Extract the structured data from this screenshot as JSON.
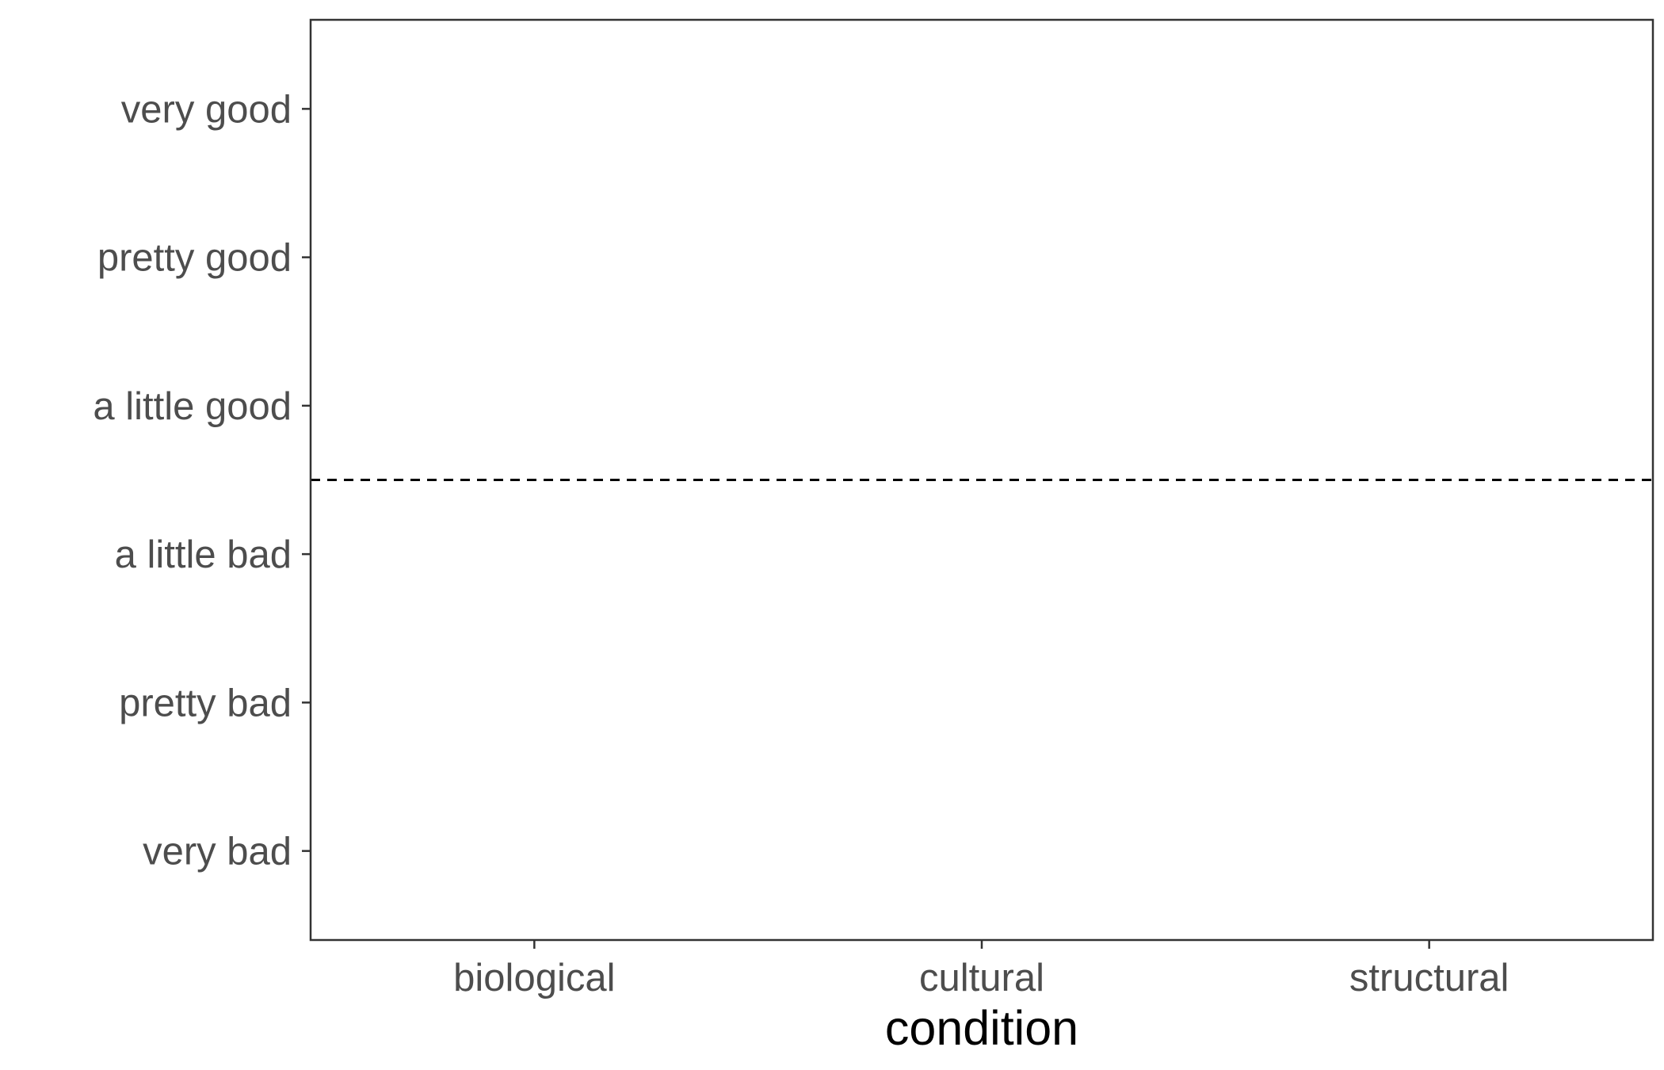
{
  "chart_data": {
    "type": "bar",
    "title": "",
    "xlabel": "condition",
    "ylabel": "",
    "categories": [
      "biological",
      "cultural",
      "structural"
    ],
    "y_categories": [
      "very bad",
      "pretty bad",
      "a little bad",
      "a little good",
      "pretty good",
      "very good"
    ],
    "series": [],
    "reference_line": {
      "orientation": "horizontal",
      "position": "between a little bad and a little good",
      "style": "dashed"
    },
    "grid": false,
    "legend": "none"
  },
  "colors": {
    "panel_border": "#333333",
    "tick": "#333333",
    "tick_label": "#4d4d4d",
    "axis_title": "#000000",
    "reference_line": "#000000"
  }
}
